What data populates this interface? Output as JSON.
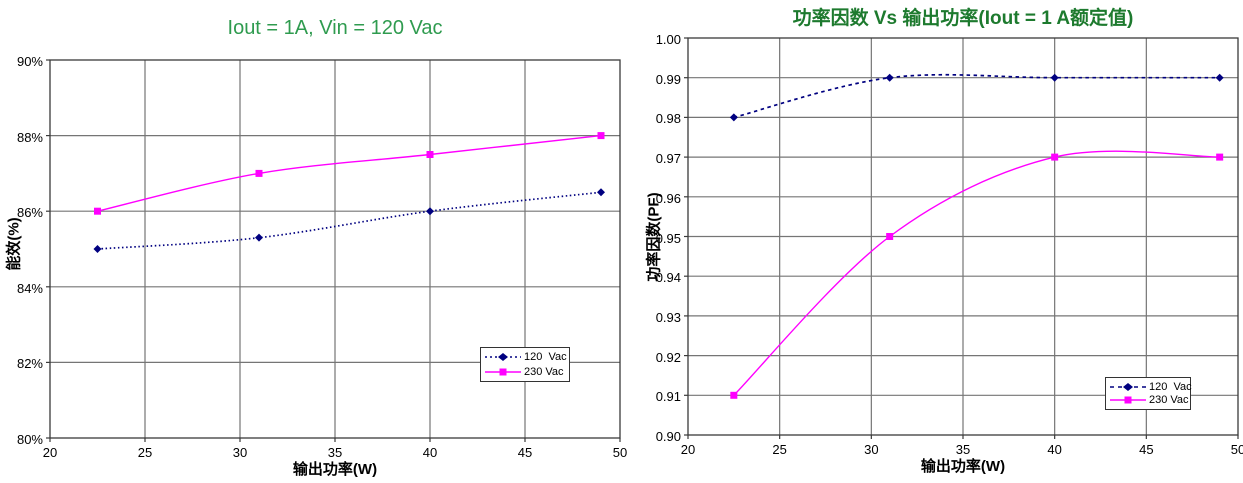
{
  "colors": {
    "series_120vac": "#000080",
    "series_230vac": "#ff00ff",
    "gridline": "#757575",
    "plot_border": "#3a3a3a",
    "tick_text": "#000000",
    "left_title_green": "#2f9b4f",
    "right_title_green": "#1d7a2e",
    "background": "#ffffff"
  },
  "chart_data": [
    {
      "type": "line",
      "title": "Iout = 1A, Vin = 120 Vac",
      "title_color": "#2f9b4f",
      "xlabel": "输出功率(W)",
      "ylabel": "能效(%)",
      "xlim": [
        20,
        50
      ],
      "ylim": [
        80,
        90
      ],
      "xticks": [
        20,
        25,
        30,
        35,
        40,
        45,
        50
      ],
      "xtick_labels": [
        "20",
        "25",
        "30",
        "35",
        "40",
        "45",
        "50"
      ],
      "yticks": [
        90,
        88,
        86,
        84,
        82,
        80
      ],
      "ytick_labels": [
        "90%",
        "88%",
        "86%",
        "84%",
        "82%",
        "80%"
      ],
      "grid": true,
      "legend_position": "inside-right",
      "series": [
        {
          "name": "120  Vac",
          "color": "#000080",
          "style": "dotted",
          "marker": "diamond",
          "x": [
            22.5,
            31,
            40,
            49
          ],
          "y": [
            85.0,
            85.3,
            86.0,
            86.5
          ]
        },
        {
          "name": "230 Vac",
          "color": "#ff00ff",
          "style": "solid",
          "marker": "square",
          "x": [
            22.5,
            31,
            40,
            49
          ],
          "y": [
            86.0,
            87.0,
            87.5,
            88.0
          ]
        }
      ]
    },
    {
      "type": "line",
      "title": "功率因数 Vs 输出功率(Iout = 1 A额定值)",
      "title_color": "#1d7a2e",
      "xlabel": "输出功率(W)",
      "ylabel": "功率因数(PF)",
      "xlim": [
        20,
        50
      ],
      "ylim": [
        0.9,
        1.0
      ],
      "xticks": [
        20,
        25,
        30,
        35,
        40,
        45,
        50
      ],
      "xtick_labels": [
        "20",
        "25",
        "30",
        "35",
        "40",
        "45",
        "50"
      ],
      "yticks": [
        1.0,
        0.99,
        0.98,
        0.97,
        0.96,
        0.95,
        0.94,
        0.93,
        0.92,
        0.91,
        0.9
      ],
      "ytick_labels": [
        "1.00",
        "0.99",
        "0.98",
        "0.97",
        "0.96",
        "0.95",
        "0.94",
        "0.93",
        "0.92",
        "0.91",
        "0.90"
      ],
      "grid": true,
      "legend_position": "inside-bottom-right",
      "series": [
        {
          "name": "120  Vac",
          "color": "#000080",
          "style": "dashed",
          "marker": "diamond",
          "x": [
            22.5,
            31,
            40,
            49
          ],
          "y": [
            0.98,
            0.99,
            0.99,
            0.99
          ]
        },
        {
          "name": "230 Vac",
          "color": "#ff00ff",
          "style": "solid",
          "marker": "square",
          "x": [
            22.5,
            31,
            40,
            49
          ],
          "y": [
            0.91,
            0.95,
            0.97,
            0.97
          ]
        }
      ]
    }
  ]
}
